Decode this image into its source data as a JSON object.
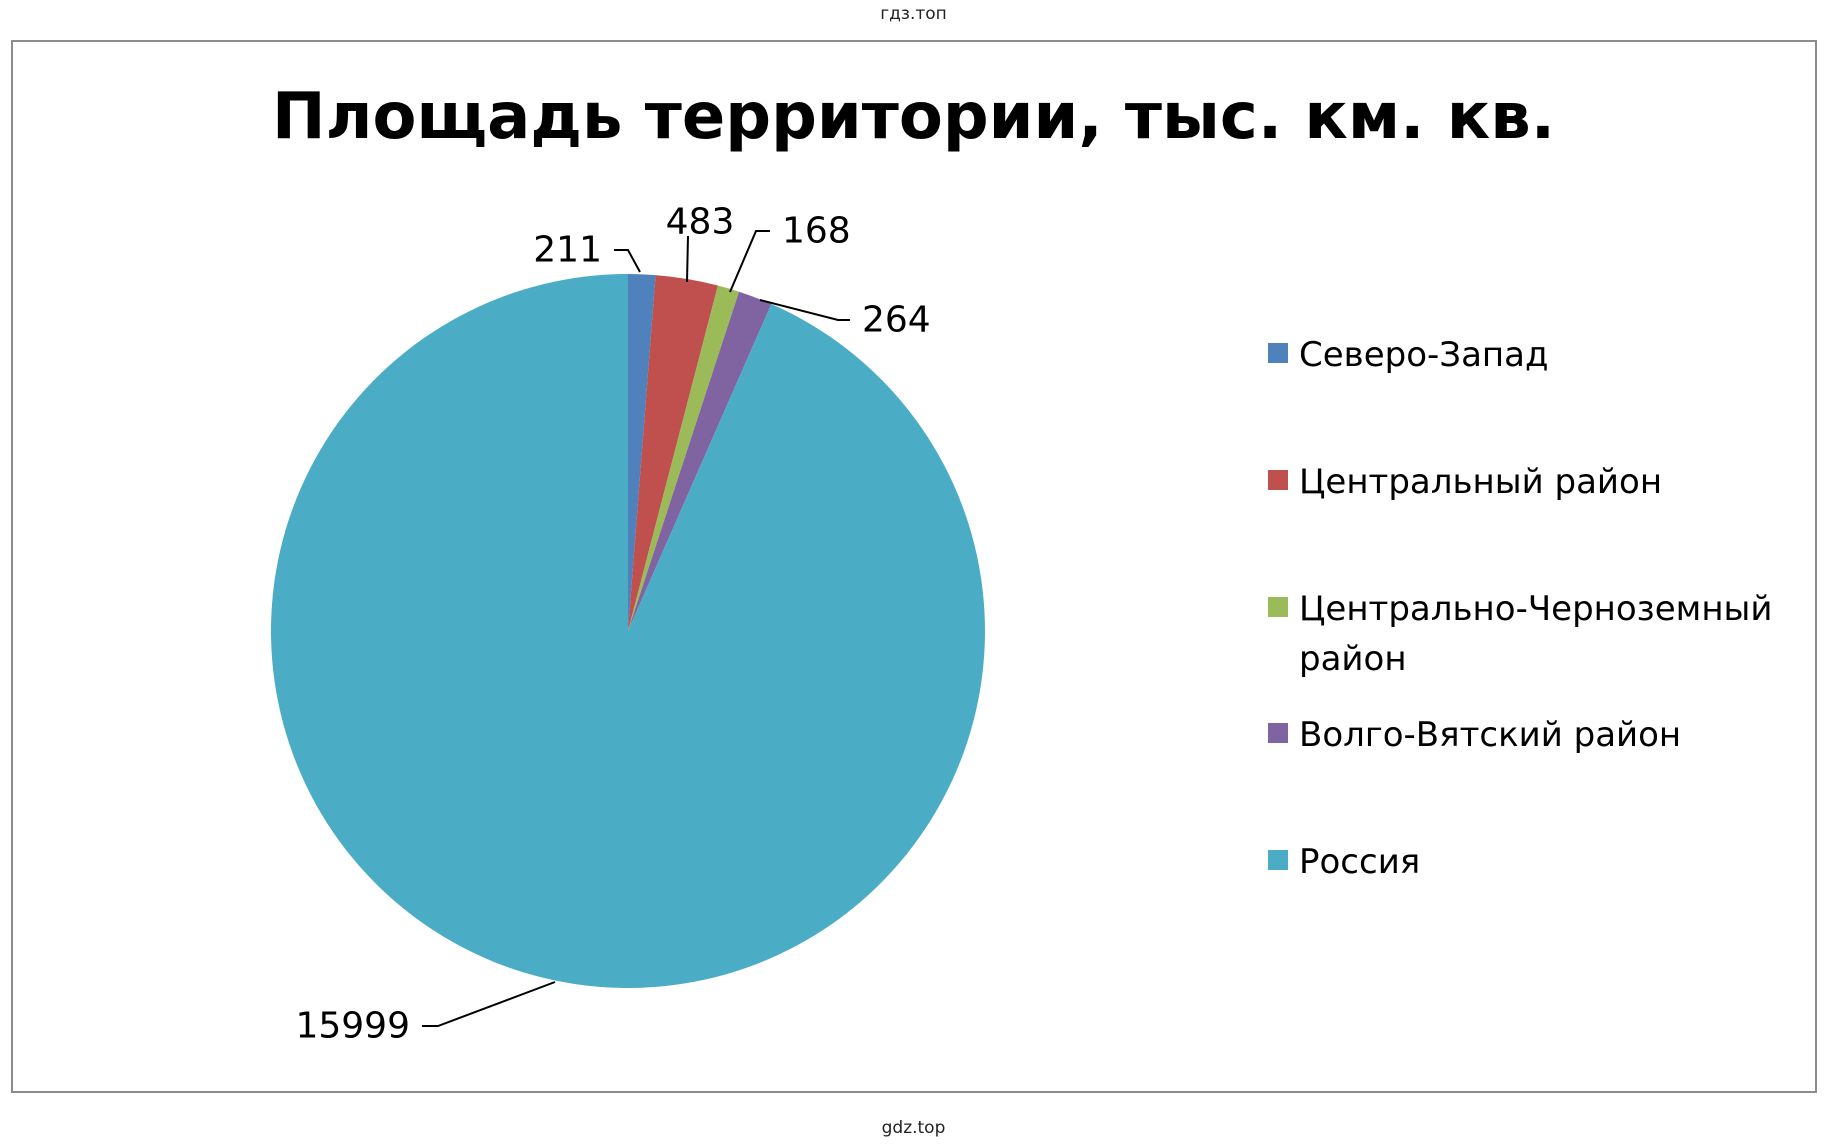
{
  "watermark": {
    "top": "гдз.топ",
    "bottom": "gdz.top"
  },
  "chart_data": {
    "type": "pie",
    "title": "Площадь территории, тыс. км. кв.",
    "legend_position": "right",
    "slices": [
      {
        "label": "Северо-Запад",
        "value": 211,
        "color": "#4F81BD"
      },
      {
        "label": "Центральный район",
        "value": 483,
        "color": "#C0504D"
      },
      {
        "label": "Центрально-Черноземный район",
        "value": 168,
        "color": "#9BBB59"
      },
      {
        "label": "Волго-Вятский район",
        "value": 264,
        "color": "#8064A2"
      },
      {
        "label": "Россия",
        "value": 15999,
        "color": "#4BACC6"
      }
    ]
  }
}
